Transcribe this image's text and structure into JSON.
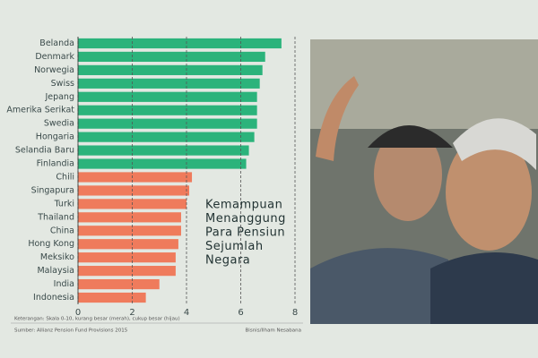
{
  "chart_data": {
    "type": "bar",
    "orientation": "horizontal",
    "title": [
      "Kemampuan",
      "Menanggung",
      "Para Pensiun",
      "Sejumlah",
      "Negara"
    ],
    "categories": [
      "Belanda",
      "Denmark",
      "Norwegia",
      "Swiss",
      "Jepang",
      "Amerika Serikat",
      "Swedia",
      "Hongaria",
      "Selandia Baru",
      "Finlandia",
      "Chili",
      "Singapura",
      "Turki",
      "Thailand",
      "China",
      "Hong Kong",
      "Meksiko",
      "Malaysia",
      "India",
      "Indonesia"
    ],
    "values": [
      7.5,
      6.9,
      6.8,
      6.7,
      6.6,
      6.6,
      6.6,
      6.5,
      6.3,
      6.2,
      4.2,
      4.1,
      4.0,
      3.8,
      3.8,
      3.7,
      3.6,
      3.6,
      3.0,
      2.5
    ],
    "colors": [
      "#2bb37b",
      "#2bb37b",
      "#2bb37b",
      "#2bb37b",
      "#2bb37b",
      "#2bb37b",
      "#2bb37b",
      "#2bb37b",
      "#2bb37b",
      "#2bb37b",
      "#ef7b5c",
      "#ef7b5c",
      "#ef7b5c",
      "#ef7b5c",
      "#ef7b5c",
      "#ef7b5c",
      "#ef7b5c",
      "#ef7b5c",
      "#ef7b5c",
      "#ef7b5c"
    ],
    "xlim": [
      0,
      8
    ],
    "xticks": [
      0,
      2,
      4,
      6,
      8
    ],
    "grid": true,
    "note": "Keterangan: Skala 0-10, kurang besar (merah), cukup besar (hijau)",
    "source": "Sumber: Allianz Pension Fund Provisions 2015",
    "credit": "Bisnis/Ilham Nesabana"
  }
}
